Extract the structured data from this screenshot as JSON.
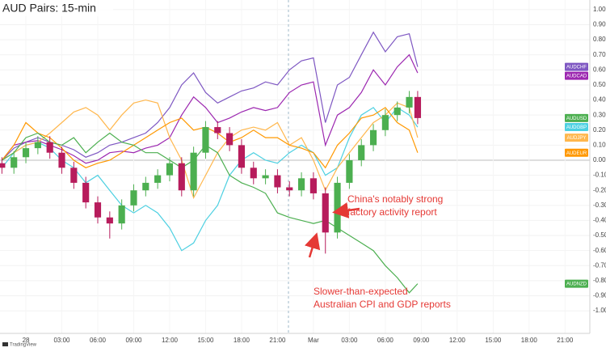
{
  "chart_data": {
    "type": "line",
    "title": "AUD Pairs: 15-min",
    "source": "TradingView",
    "x": [
      -2,
      -1,
      0,
      1,
      2,
      3,
      4,
      5,
      6,
      7,
      8,
      9,
      10,
      11,
      12,
      13,
      14,
      15,
      16,
      17,
      18,
      19,
      20,
      21,
      22,
      23,
      24,
      25,
      26,
      27,
      28,
      29,
      30,
      31,
      32,
      32.7
    ],
    "xlim": [
      -2.16,
      47.07
    ],
    "xticks": [
      {
        "value": 0,
        "label": "28"
      },
      {
        "value": 3,
        "label": "03:00"
      },
      {
        "value": 6,
        "label": "06:00"
      },
      {
        "value": 9,
        "label": "09:00"
      },
      {
        "value": 12,
        "label": "12:00"
      },
      {
        "value": 15,
        "label": "15:00"
      },
      {
        "value": 18,
        "label": "18:00"
      },
      {
        "value": 21,
        "label": "21:00"
      },
      {
        "value": 24,
        "label": "Mar"
      },
      {
        "value": 27,
        "label": "03:00"
      },
      {
        "value": 30,
        "label": "06:00"
      },
      {
        "value": 33,
        "label": "09:00"
      },
      {
        "value": 36,
        "label": "12:00"
      },
      {
        "value": 39,
        "label": "15:00"
      },
      {
        "value": 42,
        "label": "18:00"
      },
      {
        "value": 45,
        "label": "21:00"
      }
    ],
    "ylim": [
      -1.15,
      1.064
    ],
    "yticks": [
      {
        "value": 1.0,
        "label": "1.00%"
      },
      {
        "value": 0.9,
        "label": "0.90%"
      },
      {
        "value": 0.8,
        "label": "0.80%"
      },
      {
        "value": 0.7,
        "label": "0.70%"
      },
      {
        "value": 0.6,
        "label": "0.60%"
      },
      {
        "value": 0.5,
        "label": "0.50%"
      },
      {
        "value": 0.4,
        "label": "0.40%"
      },
      {
        "value": 0.3,
        "label": "0.30%"
      },
      {
        "value": 0.2,
        "label": "0.20%"
      },
      {
        "value": 0.1,
        "label": "0.10%"
      },
      {
        "value": 0,
        "label": "0.00%"
      },
      {
        "value": -0.1,
        "label": "-0.10%"
      },
      {
        "value": -0.2,
        "label": "-0.20%"
      },
      {
        "value": -0.3,
        "label": "-0.30%"
      },
      {
        "value": -0.4,
        "label": "-0.40%"
      },
      {
        "value": -0.5,
        "label": "-0.50%"
      },
      {
        "value": -0.6,
        "label": "-0.60%"
      },
      {
        "value": -0.7,
        "label": "-0.70%"
      },
      {
        "value": -0.8,
        "label": "-0.80%"
      },
      {
        "value": -0.9,
        "label": "-0.90%"
      },
      {
        "value": -1.0,
        "label": "-1.00%"
      }
    ],
    "series": [
      {
        "name": "AUDCHF",
        "color": "#7e57c2",
        "values": [
          0.0,
          0.08,
          0.12,
          0.15,
          0.12,
          0.1,
          0.07,
          0.02,
          0.05,
          0.1,
          0.12,
          0.15,
          0.18,
          0.25,
          0.35,
          0.5,
          0.58,
          0.45,
          0.38,
          0.42,
          0.46,
          0.48,
          0.52,
          0.5,
          0.6,
          0.66,
          0.68,
          0.25,
          0.5,
          0.55,
          0.7,
          0.85,
          0.72,
          0.82,
          0.84,
          0.62
        ]
      },
      {
        "name": "AUDCAD",
        "color": "#9c27b0",
        "values": [
          0.0,
          0.1,
          0.12,
          0.13,
          0.1,
          0.07,
          0.03,
          -0.02,
          0.0,
          0.05,
          0.06,
          0.05,
          0.08,
          0.1,
          0.15,
          0.3,
          0.42,
          0.35,
          0.25,
          0.28,
          0.32,
          0.35,
          0.33,
          0.35,
          0.45,
          0.5,
          0.52,
          0.1,
          0.3,
          0.35,
          0.45,
          0.6,
          0.5,
          0.62,
          0.7,
          0.58
        ]
      },
      {
        "name": "AUDGBP",
        "color": "#4dd0e1",
        "values": [
          -0.05,
          0.05,
          0.1,
          0.12,
          0.08,
          0.0,
          -0.05,
          -0.15,
          -0.1,
          -0.2,
          -0.3,
          -0.35,
          -0.3,
          -0.35,
          -0.45,
          -0.6,
          -0.55,
          -0.4,
          -0.3,
          -0.1,
          0.0,
          0.05,
          0.0,
          -0.02,
          0.05,
          0.1,
          0.05,
          -0.1,
          -0.05,
          0.15,
          0.3,
          0.35,
          0.25,
          0.35,
          0.3,
          0.22
        ]
      },
      {
        "name": "AUDJPY",
        "color": "#ffb74d",
        "values": [
          0.0,
          0.05,
          0.1,
          0.12,
          0.18,
          0.25,
          0.32,
          0.35,
          0.3,
          0.2,
          0.3,
          0.38,
          0.4,
          0.38,
          0.15,
          0.0,
          -0.25,
          -0.1,
          0.05,
          0.15,
          0.2,
          0.22,
          0.2,
          0.25,
          0.1,
          0.15,
          0.0,
          -0.2,
          -0.05,
          0.05,
          0.15,
          0.25,
          0.3,
          0.38,
          0.35,
          0.15
        ]
      },
      {
        "name": "AUDEUR",
        "color": "#ff9800",
        "values": [
          0.0,
          0.1,
          0.25,
          0.18,
          0.15,
          0.08,
          0.0,
          -0.05,
          -0.02,
          0.0,
          0.05,
          0.1,
          0.15,
          0.2,
          0.25,
          0.28,
          0.2,
          0.22,
          0.18,
          0.12,
          0.15,
          0.2,
          0.15,
          0.15,
          0.1,
          0.08,
          0.05,
          -0.05,
          0.1,
          0.18,
          0.28,
          0.3,
          0.35,
          0.25,
          0.2,
          0.05
        ]
      },
      {
        "name": "AUDNZD",
        "color": "#4caf50",
        "values": [
          0.0,
          0.05,
          0.15,
          0.18,
          0.12,
          0.1,
          0.15,
          0.05,
          0.12,
          0.18,
          0.12,
          0.1,
          0.05,
          0.05,
          0.0,
          -0.05,
          0.0,
          0.1,
          0.05,
          -0.1,
          -0.15,
          -0.18,
          -0.22,
          -0.35,
          -0.38,
          -0.4,
          -0.42,
          -0.4,
          -0.45,
          -0.5,
          -0.55,
          -0.6,
          -0.7,
          -0.78,
          -0.88,
          -0.82
        ]
      }
    ],
    "candles": {
      "name": "AUDUSD",
      "color": "#4caf50",
      "up_color": "#4caf50",
      "down_color": "#b71c5c",
      "open": [
        -0.02,
        -0.05,
        0.02,
        0.08,
        0.12,
        0.05,
        -0.05,
        -0.15,
        -0.28,
        -0.38,
        -0.42,
        -0.3,
        -0.2,
        -0.15,
        -0.1,
        -0.02,
        -0.2,
        0.05,
        0.22,
        0.18,
        0.1,
        -0.05,
        -0.12,
        -0.1,
        -0.18,
        -0.2,
        -0.12,
        -0.22,
        -0.48,
        -0.15,
        0.0,
        0.1,
        0.2,
        0.3,
        0.35,
        0.42
      ],
      "high": [
        0.02,
        0.06,
        0.12,
        0.16,
        0.16,
        0.09,
        -0.01,
        -0.11,
        -0.24,
        -0.34,
        -0.26,
        -0.16,
        -0.11,
        -0.06,
        0.02,
        0.02,
        0.09,
        0.26,
        0.26,
        0.22,
        0.14,
        -0.01,
        -0.06,
        -0.06,
        -0.14,
        -0.08,
        -0.08,
        -0.18,
        -0.11,
        0.04,
        0.14,
        0.24,
        0.34,
        0.39,
        0.46,
        0.46
      ],
      "low": [
        -0.09,
        -0.09,
        -0.02,
        0.04,
        0.01,
        -0.09,
        -0.19,
        -0.32,
        -0.42,
        -0.52,
        -0.46,
        -0.34,
        -0.24,
        -0.19,
        -0.14,
        -0.24,
        -0.24,
        0.01,
        0.14,
        0.06,
        -0.09,
        -0.16,
        -0.16,
        -0.22,
        -0.24,
        -0.24,
        -0.26,
        -0.62,
        -0.52,
        -0.19,
        -0.04,
        0.06,
        0.16,
        0.26,
        0.31,
        0.24
      ],
      "close": [
        -0.05,
        0.02,
        0.08,
        0.12,
        0.05,
        -0.05,
        -0.15,
        -0.28,
        -0.38,
        -0.42,
        -0.3,
        -0.2,
        -0.15,
        -0.1,
        -0.02,
        -0.2,
        0.05,
        0.22,
        0.18,
        0.1,
        -0.05,
        -0.12,
        -0.1,
        -0.18,
        -0.2,
        -0.12,
        -0.22,
        -0.48,
        -0.15,
        0.0,
        0.1,
        0.2,
        0.3,
        0.35,
        0.42,
        0.28
      ]
    },
    "annotations": [
      {
        "lines": [
          "China's notably strong",
          "factory activity report"
        ]
      },
      {
        "lines": [
          "Slower-than-expected",
          "Australian CPI and GDP reports"
        ]
      }
    ]
  }
}
